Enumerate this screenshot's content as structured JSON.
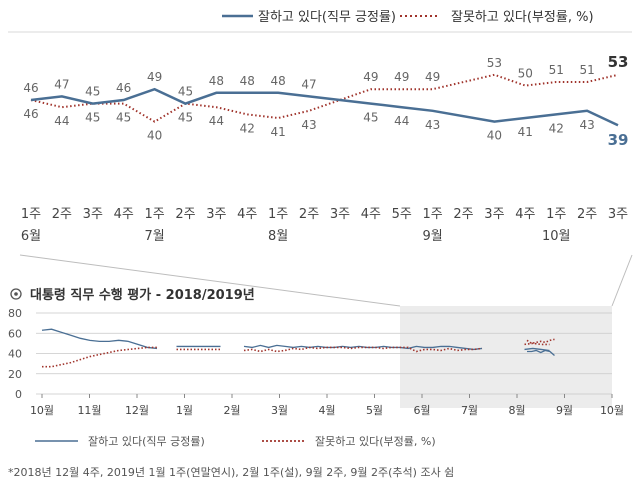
{
  "colors": {
    "approve": "#4a6f94",
    "disapprove": "#a0342c",
    "zoom_shade": "#ececec",
    "grid": "#c8c8c8",
    "text": "#444444"
  },
  "chart_data": [
    {
      "type": "line",
      "legend": [
        "잘하고 있다(직무 긍정률)",
        "잘못하고 있다(부정률, %)"
      ],
      "categories": [
        [
          "1주",
          "6월"
        ],
        [
          "2주",
          ""
        ],
        [
          "3주",
          ""
        ],
        [
          "4주",
          ""
        ],
        [
          "1주",
          "7월"
        ],
        [
          "2주",
          ""
        ],
        [
          "3주",
          ""
        ],
        [
          "4주",
          ""
        ],
        [
          "1주",
          "8월"
        ],
        [
          "2주",
          ""
        ],
        [
          "3주",
          ""
        ],
        [
          "4주",
          ""
        ],
        [
          "5주",
          ""
        ],
        [
          "1주",
          "9월"
        ],
        [
          "2주",
          ""
        ],
        [
          "3주",
          ""
        ],
        [
          "4주",
          ""
        ],
        [
          "1주",
          "10월"
        ],
        [
          "2주",
          ""
        ],
        [
          "3주",
          ""
        ]
      ],
      "series": [
        {
          "name": "잘하고 있다(직무 긍정률)",
          "style": "solid",
          "values": [
            46,
            47,
            45,
            46,
            49,
            45,
            48,
            48,
            48,
            47,
            null,
            45,
            44,
            43,
            null,
            40,
            41,
            42,
            43,
            39
          ]
        },
        {
          "name": "잘못하고 있다(부정률, %)",
          "style": "dotted",
          "values": [
            46,
            44,
            45,
            45,
            40,
            45,
            44,
            42,
            41,
            43,
            null,
            49,
            49,
            49,
            null,
            53,
            50,
            51,
            51,
            53
          ]
        }
      ],
      "last_values": {
        "approve": "39",
        "disapprove": "53"
      },
      "grid": false
    },
    {
      "type": "line",
      "title": "대통령 직무 수행 평가 - 2018/2019년",
      "title_icon": "circled-dot-icon",
      "ylim": [
        0,
        80
      ],
      "yticks": [
        "0",
        "20",
        "40",
        "60",
        "80"
      ],
      "month_labels": [
        "10월",
        "11월",
        "12월",
        "1월",
        "2월",
        "3월",
        "4월",
        "5월",
        "6월",
        "7월",
        "8월",
        "9월",
        "10월"
      ],
      "series": [
        {
          "name": "잘하고 있다(직무 긍정률)",
          "style": "solid",
          "segments": [
            [
              63,
              64,
              61,
              58,
              55,
              53,
              52,
              52,
              53,
              52,
              49,
              46,
              45
            ],
            [
              47,
              47,
              47,
              47
            ],
            [
              47,
              46,
              48,
              46,
              48,
              47,
              46,
              47,
              46,
              47,
              46,
              46,
              47,
              46,
              47,
              46,
              46,
              47,
              46,
              46,
              45,
              47,
              46,
              46,
              47,
              47,
              46,
              45,
              44,
              45
            ],
            [
              44,
              45,
              44,
              43
            ],
            [
              42,
              42,
              43,
              41,
              43,
              42,
              38
            ]
          ]
        },
        {
          "name": "잘못하고 있다(부정률, %)",
          "style": "dotted",
          "segments": [
            [
              27,
              27,
              29,
              31,
              34,
              37,
              39,
              41,
              43,
              44,
              45,
              46,
              46
            ],
            [
              44,
              44,
              44,
              44
            ],
            [
              43,
              44,
              42,
              44,
              42,
              43,
              45,
              44,
              46,
              45,
              46,
              46,
              46,
              45,
              46,
              46,
              46,
              45,
              46,
              46,
              46,
              42,
              44,
              44,
              43,
              45,
              43,
              44,
              44,
              45
            ],
            [
              49,
              50,
              49,
              49
            ],
            [
              53,
              50,
              51,
              52,
              51,
              53,
              54
            ]
          ]
        }
      ],
      "legend": [
        "잘하고 있다(직무 긍정률)",
        "잘못하고 있다(부정률, %)"
      ],
      "grid": true,
      "highlight": "6월~10월"
    }
  ],
  "footnote": "*2018년 12월 4주, 2019년 1월 1주(연말연시), 2월 1주(설), 9월 2주, 9월 2주(추석) 조사 쉼"
}
